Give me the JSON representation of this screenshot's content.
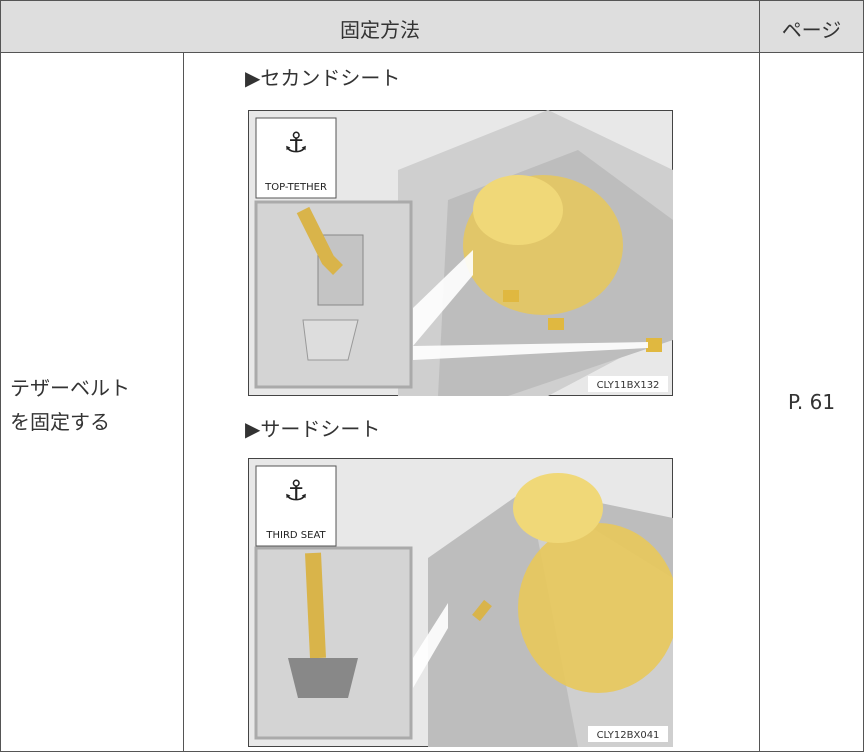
{
  "table": {
    "header": [
      "固定方法",
      "ページ"
    ],
    "rows": [
      {
        "method": [
          "テザーベルト",
          "を固定する"
        ],
        "sections": [
          {
            "label": "▶セカンドシート",
            "figure": {
              "icon_label": "TOP-TETHER",
              "code": "CLY11BX132"
            }
          },
          {
            "label": "▶サードシート",
            "figure": {
              "icon_label": "THIRD SEAT",
              "code": "CLY12BX041"
            }
          }
        ],
        "page": "P. 61"
      }
    ]
  }
}
